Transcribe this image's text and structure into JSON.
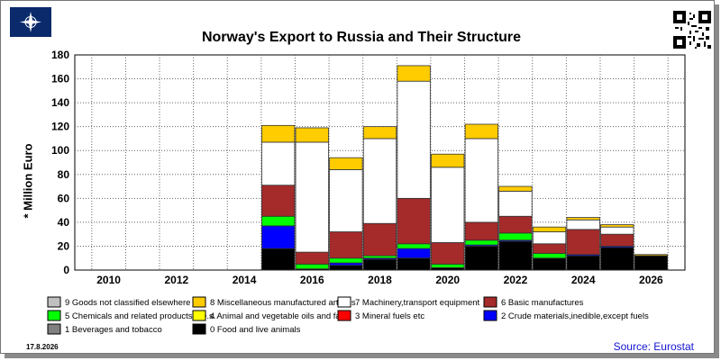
{
  "header": {
    "title": "Norway's Export to Russia and Their Structure",
    "flag_icon": "nato-flag-icon",
    "qr_icon": "qr-code-icon"
  },
  "footer": {
    "date": "17.8.2026",
    "source": "Source: Eurostat"
  },
  "chart_data": {
    "type": "bar",
    "stacked": true,
    "title": "Norway's Export to Russia and Their Structure",
    "xlabel": "",
    "ylabel": "* Million Euro",
    "ylim": [
      0,
      180
    ],
    "xlim": [
      2009,
      2027
    ],
    "yticks": [
      0,
      20,
      40,
      60,
      80,
      100,
      120,
      140,
      160,
      180
    ],
    "xticks": [
      2010,
      2012,
      2014,
      2016,
      2018,
      2020,
      2022,
      2024,
      2026
    ],
    "grid": true,
    "legend_position": "bottom",
    "x": [
      2015,
      2016,
      2017,
      2018,
      2019,
      2020,
      2021,
      2022,
      2023,
      2024,
      2025,
      2026
    ],
    "series": [
      {
        "name": "0 Food and live animals",
        "color": "#000000",
        "values": [
          18,
          1,
          4,
          9,
          10,
          2,
          20,
          24,
          10,
          12,
          19,
          12
        ]
      },
      {
        "name": "1 Beverages and tobacco",
        "color": "#808080",
        "values": [
          0,
          0,
          0,
          0,
          0,
          0,
          0,
          0,
          0,
          0,
          0,
          0
        ]
      },
      {
        "name": "2 Crude materials,inedible,except fuels",
        "color": "#0000ff",
        "values": [
          19,
          0,
          2,
          1,
          8,
          0,
          1,
          1,
          0,
          1,
          1,
          0
        ]
      },
      {
        "name": "3 Mineral fuels etc",
        "color": "#ff0000",
        "values": [
          0,
          0,
          0,
          0,
          0,
          0,
          0,
          0,
          0,
          0,
          0,
          0
        ]
      },
      {
        "name": "4 Animal and vegetable oils and fats",
        "color": "#ffff00",
        "values": [
          0,
          0,
          0,
          0,
          0,
          0,
          0,
          0,
          0,
          0,
          0,
          0
        ]
      },
      {
        "name": "5 Chemicals and related products,n.e.s.",
        "color": "#00ff00",
        "values": [
          8,
          4,
          4,
          2,
          4,
          3,
          4,
          6,
          4,
          0,
          0,
          0
        ]
      },
      {
        "name": "6 Basic manufactures",
        "color": "#a52a2a",
        "values": [
          26,
          10,
          22,
          27,
          38,
          18,
          15,
          14,
          8,
          21,
          10,
          0
        ]
      },
      {
        "name": "7 Machinery,transport equipment",
        "color": "#ffffff",
        "values": [
          36,
          92,
          52,
          71,
          98,
          63,
          70,
          21,
          10,
          8,
          6,
          0
        ]
      },
      {
        "name": "8 Miscellaneous manufactured articles",
        "color": "#ffcc00",
        "values": [
          14,
          12,
          10,
          10,
          13,
          11,
          12,
          4,
          4,
          2,
          2,
          1
        ]
      },
      {
        "name": "9 Goods not classified elsewhere",
        "color": "#c0c0c0",
        "values": [
          0,
          0,
          0,
          0,
          0,
          0,
          0,
          0,
          0,
          0,
          0,
          0
        ]
      }
    ]
  }
}
